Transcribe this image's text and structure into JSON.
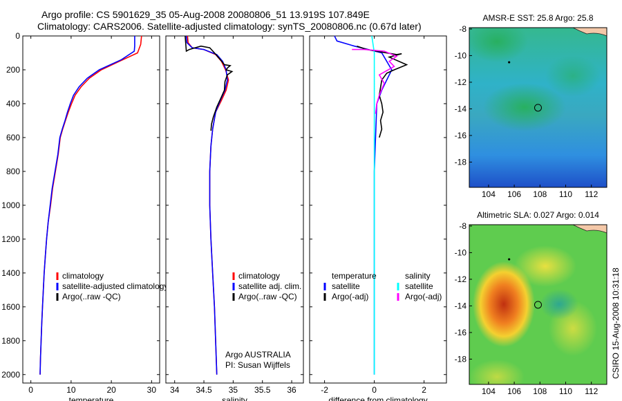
{
  "title": {
    "line1": "Argo profile: CS 5901629_35 05-Aug-2008 20080806_51 13.919S 107.849E",
    "line2": "Climatology: CARS2006. Satellite-adjusted climatology: synTS_20080806.nc (0.67d later)"
  },
  "side_label": "CSIRO 15-Aug-2008 10:31:18",
  "colors": {
    "climatology": "#ff0000",
    "satellite": "#0000ff",
    "argo": "#000000",
    "salinity_satellite": "#00ffff",
    "salinity_argo": "#ff00ff",
    "coast": "#f4c8a8"
  },
  "chart_data": [
    {
      "id": "temperature",
      "type": "line",
      "xlabel": "temperature",
      "ylabel": "",
      "xlim": [
        -2,
        32
      ],
      "ylim": [
        2050,
        0
      ],
      "xticks": [
        0,
        10,
        20,
        30
      ],
      "yticks": [
        0,
        200,
        400,
        600,
        800,
        1000,
        1200,
        1400,
        1600,
        1800,
        2000
      ],
      "legend": [
        "climatology",
        "satellite-adjusted climatology",
        "Argo(..raw -QC)"
      ],
      "legend_colors": [
        "#ff0000",
        "#0000ff",
        "#000000"
      ],
      "series": [
        {
          "name": "climatology",
          "color": "#ff0000",
          "points": [
            [
              27.5,
              0
            ],
            [
              27.3,
              50
            ],
            [
              26.5,
              100
            ],
            [
              22,
              150
            ],
            [
              17.5,
              200
            ],
            [
              14.5,
              250
            ],
            [
              12.5,
              300
            ],
            [
              11,
              350
            ],
            [
              10.1,
              400
            ],
            [
              9.3,
              450
            ],
            [
              8.6,
              500
            ],
            [
              7.9,
              550
            ],
            [
              7.3,
              600
            ],
            [
              6.8,
              700
            ],
            [
              6.1,
              800
            ],
            [
              5.4,
              900
            ],
            [
              4.9,
              1000
            ],
            [
              4.3,
              1100
            ],
            [
              3.9,
              1200
            ],
            [
              3.6,
              1300
            ],
            [
              3.3,
              1400
            ],
            [
              3.1,
              1500
            ],
            [
              2.9,
              1600
            ],
            [
              2.7,
              1700
            ],
            [
              2.55,
              1800
            ],
            [
              2.4,
              1900
            ],
            [
              2.3,
              2000
            ]
          ]
        },
        {
          "name": "satellite-adjusted climatology",
          "color": "#0000ff",
          "points": [
            [
              25.8,
              0
            ],
            [
              25.8,
              60
            ],
            [
              25.7,
              90
            ],
            [
              22.5,
              140
            ],
            [
              17,
              200
            ],
            [
              14,
              250
            ],
            [
              12,
              300
            ],
            [
              10.6,
              350
            ],
            [
              9.8,
              400
            ],
            [
              9.1,
              450
            ],
            [
              8.5,
              500
            ],
            [
              7.8,
              550
            ],
            [
              7.2,
              600
            ],
            [
              6.7,
              700
            ],
            [
              6,
              800
            ],
            [
              5.3,
              900
            ],
            [
              4.8,
              1000
            ],
            [
              4.3,
              1100
            ],
            [
              3.9,
              1200
            ],
            [
              3.6,
              1300
            ],
            [
              3.3,
              1400
            ],
            [
              3.1,
              1500
            ],
            [
              2.9,
              1600
            ],
            [
              2.7,
              1700
            ],
            [
              2.55,
              1800
            ],
            [
              2.4,
              1900
            ],
            [
              2.3,
              2000
            ]
          ]
        }
      ]
    },
    {
      "id": "salinity",
      "type": "line",
      "xlabel": "salinity",
      "ylabel": "",
      "xlim": [
        33.85,
        36.2
      ],
      "ylim": [
        2050,
        0
      ],
      "xticks": [
        34,
        34.5,
        35,
        35.5,
        36
      ],
      "legend": [
        "climatology",
        "satellite adj. clim.",
        "Argo(..raw -QC)"
      ],
      "legend_colors": [
        "#ff0000",
        "#0000ff",
        "#000000"
      ],
      "annotation": [
        "Argo AUSTRALIA",
        "PI: Susan Wijffels"
      ],
      "series": [
        {
          "name": "climatology",
          "color": "#ff0000",
          "points": [
            [
              34.22,
              0
            ],
            [
              34.23,
              40
            ],
            [
              34.3,
              70
            ],
            [
              34.5,
              80
            ],
            [
              34.7,
              110
            ],
            [
              34.8,
              150
            ],
            [
              34.87,
              200
            ],
            [
              34.92,
              260
            ],
            [
              34.88,
              320
            ],
            [
              34.8,
              380
            ],
            [
              34.7,
              450
            ],
            [
              34.65,
              550
            ],
            [
              34.62,
              650
            ],
            [
              34.6,
              800
            ],
            [
              34.6,
              1000
            ],
            [
              34.62,
              1200
            ],
            [
              34.65,
              1400
            ],
            [
              34.68,
              1600
            ],
            [
              34.7,
              1800
            ],
            [
              34.72,
              2000
            ]
          ]
        },
        {
          "name": "satellite adj. clim.",
          "color": "#0000ff",
          "points": [
            [
              34.2,
              0
            ],
            [
              34.21,
              40
            ],
            [
              34.3,
              70
            ],
            [
              34.5,
              80
            ],
            [
              34.72,
              110
            ],
            [
              34.82,
              150
            ],
            [
              34.88,
              200
            ],
            [
              34.9,
              260
            ],
            [
              34.86,
              320
            ],
            [
              34.78,
              380
            ],
            [
              34.7,
              450
            ],
            [
              34.65,
              550
            ],
            [
              34.62,
              650
            ],
            [
              34.6,
              800
            ],
            [
              34.6,
              1000
            ],
            [
              34.62,
              1200
            ],
            [
              34.65,
              1400
            ],
            [
              34.68,
              1600
            ],
            [
              34.7,
              1800
            ],
            [
              34.72,
              2000
            ]
          ]
        },
        {
          "name": "Argo(..raw -QC)",
          "color": "#000000",
          "points": [
            [
              34.18,
              0
            ],
            [
              34.2,
              90
            ],
            [
              34.25,
              80
            ],
            [
              34.35,
              70
            ],
            [
              34.45,
              60
            ],
            [
              34.6,
              70
            ],
            [
              34.68,
              100
            ],
            [
              34.78,
              140
            ],
            [
              34.85,
              170
            ],
            [
              34.95,
              175
            ],
            [
              34.9,
              190
            ],
            [
              34.88,
              200
            ],
            [
              34.98,
              210
            ],
            [
              34.9,
              230
            ],
            [
              34.86,
              270
            ],
            [
              34.85,
              320
            ],
            [
              34.8,
              360
            ],
            [
              34.72,
              420
            ],
            [
              34.66,
              480
            ],
            [
              34.63,
              520
            ],
            [
              34.62,
              560
            ]
          ]
        }
      ]
    },
    {
      "id": "difference",
      "type": "line",
      "xlabel": "difference from climatology",
      "ylabel": "",
      "xlim": [
        -2.6,
        2.9
      ],
      "ylim": [
        2050,
        0
      ],
      "xticks": [
        -2,
        0,
        2
      ],
      "legend": [
        "temperature",
        "satellite",
        "Argo(-adj)",
        "salinity",
        "satellite",
        "Argo(-adj)"
      ],
      "legend_colors": [
        "#000000",
        "#0000ff",
        "#000000",
        "#ffffff",
        "#00ffff",
        "#ff00ff"
      ],
      "series": [
        {
          "name": "temperature satellite",
          "color": "#0000ff",
          "points": [
            [
              -1.6,
              0
            ],
            [
              -1.5,
              30
            ],
            [
              -0.8,
              60
            ],
            [
              0.3,
              100
            ],
            [
              0.5,
              150
            ],
            [
              0.7,
              200
            ],
            [
              0.5,
              260
            ],
            [
              0.3,
              320
            ],
            [
              0.1,
              400
            ],
            [
              0.05,
              600
            ],
            [
              0,
              800
            ],
            [
              0,
              1000
            ],
            [
              0,
              1500
            ],
            [
              0,
              2000
            ]
          ]
        },
        {
          "name": "temperature Argo(-adj)",
          "color": "#000000",
          "points": [
            [
              -0.7,
              60
            ],
            [
              -0.3,
              80
            ],
            [
              0.3,
              95
            ],
            [
              0.9,
              110
            ],
            [
              1.1,
              105
            ],
            [
              0.6,
              125
            ],
            [
              1.3,
              170
            ],
            [
              0.8,
              200
            ],
            [
              0.5,
              220
            ],
            [
              0.3,
              260
            ],
            [
              0.2,
              350
            ],
            [
              0.3,
              400
            ],
            [
              0.35,
              450
            ],
            [
              0.25,
              500
            ],
            [
              0.3,
              550
            ],
            [
              0.2,
              600
            ]
          ]
        },
        {
          "name": "salinity satellite",
          "color": "#00ffff",
          "points": [
            [
              -0.1,
              0
            ],
            [
              -0.05,
              50
            ],
            [
              0,
              100
            ],
            [
              0,
              300
            ],
            [
              0,
              600
            ],
            [
              0,
              1000
            ],
            [
              0,
              1500
            ],
            [
              0,
              2000
            ]
          ]
        },
        {
          "name": "salinity Argo(-adj)",
          "color": "#ff00ff",
          "points": [
            [
              -0.9,
              80
            ],
            [
              -0.4,
              80
            ],
            [
              0.4,
              90
            ],
            [
              0.9,
              120
            ],
            [
              0.6,
              150
            ],
            [
              0.8,
              180
            ],
            [
              0.2,
              230
            ],
            [
              0.4,
              280
            ],
            [
              0.2,
              350
            ],
            [
              0.1,
              400
            ],
            [
              0.05,
              460
            ]
          ]
        }
      ]
    },
    {
      "id": "sst-map",
      "type": "heatmap",
      "title": "AMSR-E SST: 25.8 Argo: 25.8",
      "xlim": [
        102.5,
        113.2
      ],
      "ylim": [
        -19.9,
        -7.9
      ],
      "xticks": [
        104,
        106,
        108,
        110,
        112
      ],
      "yticks": [
        -8,
        -10,
        -12,
        -14,
        -16,
        -18
      ],
      "argo_position": [
        107.849,
        -13.919
      ]
    },
    {
      "id": "sla-map",
      "type": "heatmap",
      "title": "Altimetric SLA: 0.027 Argo: 0.014",
      "xlim": [
        102.5,
        113.2
      ],
      "ylim": [
        -19.9,
        -7.9
      ],
      "xticks": [
        104,
        106,
        108,
        110,
        112
      ],
      "yticks": [
        -8,
        -10,
        -12,
        -14,
        -16,
        -18
      ],
      "argo_position": [
        107.849,
        -13.919
      ]
    }
  ]
}
